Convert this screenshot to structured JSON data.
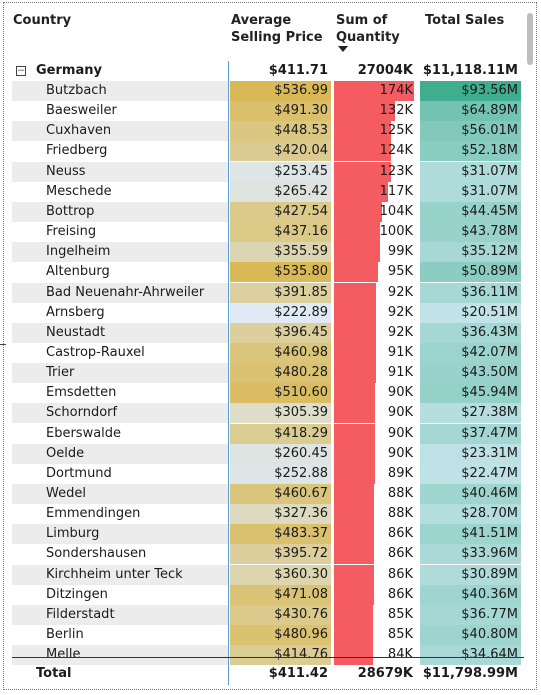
{
  "header": {
    "col_country": "Country",
    "col_price_1": "Average",
    "col_price_2": "Selling Price",
    "col_qty_1": "Sum of",
    "col_qty_2": "Quantity",
    "col_sales": "Total Sales"
  },
  "group": {
    "expand_symbol": "⊟",
    "name": "Germany",
    "price": "$411.71",
    "qty": "27004K",
    "sales": "$11,118.11M"
  },
  "rows": [
    {
      "name": "Butzbach",
      "price": "$536.99",
      "qty": "174K",
      "sales": "$93.56M",
      "q": 174
    },
    {
      "name": "Baesweiler",
      "price": "$491.30",
      "qty": "132K",
      "sales": "$64.89M",
      "q": 132
    },
    {
      "name": "Cuxhaven",
      "price": "$448.53",
      "qty": "125K",
      "sales": "$56.01M",
      "q": 125
    },
    {
      "name": "Friedberg",
      "price": "$420.04",
      "qty": "124K",
      "sales": "$52.18M",
      "q": 124
    },
    {
      "name": "Neuss",
      "price": "$253.45",
      "qty": "123K",
      "sales": "$31.07M",
      "q": 123
    },
    {
      "name": "Meschede",
      "price": "$265.42",
      "qty": "117K",
      "sales": "$31.07M",
      "q": 117
    },
    {
      "name": "Bottrop",
      "price": "$427.54",
      "qty": "104K",
      "sales": "$44.45M",
      "q": 104
    },
    {
      "name": "Freising",
      "price": "$437.16",
      "qty": "100K",
      "sales": "$43.78M",
      "q": 100
    },
    {
      "name": "Ingelheim",
      "price": "$355.59",
      "qty": "99K",
      "sales": "$35.12M",
      "q": 99
    },
    {
      "name": "Altenburg",
      "price": "$535.80",
      "qty": "95K",
      "sales": "$50.89M",
      "q": 95
    },
    {
      "name": "Bad Neuenahr-Ahrweiler",
      "price": "$391.85",
      "qty": "92K",
      "sales": "$36.11M",
      "q": 92
    },
    {
      "name": "Arnsberg",
      "price": "$222.89",
      "qty": "92K",
      "sales": "$20.51M",
      "q": 92
    },
    {
      "name": "Neustadt",
      "price": "$396.45",
      "qty": "92K",
      "sales": "$36.43M",
      "q": 92
    },
    {
      "name": "Castrop-Rauxel",
      "price": "$460.98",
      "qty": "91K",
      "sales": "$42.07M",
      "q": 91
    },
    {
      "name": "Trier",
      "price": "$480.28",
      "qty": "91K",
      "sales": "$43.50M",
      "q": 91
    },
    {
      "name": "Emsdetten",
      "price": "$510.60",
      "qty": "90K",
      "sales": "$45.94M",
      "q": 90
    },
    {
      "name": "Schorndorf",
      "price": "$305.39",
      "qty": "90K",
      "sales": "$27.38M",
      "q": 90
    },
    {
      "name": "Eberswalde",
      "price": "$418.29",
      "qty": "90K",
      "sales": "$37.47M",
      "q": 90
    },
    {
      "name": "Oelde",
      "price": "$260.45",
      "qty": "90K",
      "sales": "$23.31M",
      "q": 90
    },
    {
      "name": "Dortmund",
      "price": "$252.88",
      "qty": "89K",
      "sales": "$22.47M",
      "q": 89
    },
    {
      "name": "Wedel",
      "price": "$460.67",
      "qty": "88K",
      "sales": "$40.46M",
      "q": 88
    },
    {
      "name": "Emmendingen",
      "price": "$327.36",
      "qty": "88K",
      "sales": "$28.70M",
      "q": 88
    },
    {
      "name": "Limburg",
      "price": "$483.37",
      "qty": "86K",
      "sales": "$41.51M",
      "q": 86
    },
    {
      "name": "Sondershausen",
      "price": "$395.72",
      "qty": "86K",
      "sales": "$33.96M",
      "q": 86
    },
    {
      "name": "Kirchheim unter Teck",
      "price": "$360.30",
      "qty": "86K",
      "sales": "$30.89M",
      "q": 86
    },
    {
      "name": "Ditzingen",
      "price": "$471.08",
      "qty": "86K",
      "sales": "$40.36M",
      "q": 86
    },
    {
      "name": "Filderstadt",
      "price": "$430.76",
      "qty": "85K",
      "sales": "$36.77M",
      "q": 85
    },
    {
      "name": "Berlin",
      "price": "$480.96",
      "qty": "85K",
      "sales": "$40.80M",
      "q": 85
    },
    {
      "name": "Melle",
      "price": "$414.76",
      "qty": "84K",
      "sales": "$34.64M",
      "q": 84
    }
  ],
  "total": {
    "label": "Total",
    "price": "$411.42",
    "qty": "28679K",
    "sales": "$11,798.99M"
  },
  "colors": {
    "price_low": "#dfeaf4",
    "price_high": "#d9b955",
    "qty_bar": "#f45c61",
    "sales_low": "#c2e3e8",
    "sales_high": "#3fae8e"
  }
}
